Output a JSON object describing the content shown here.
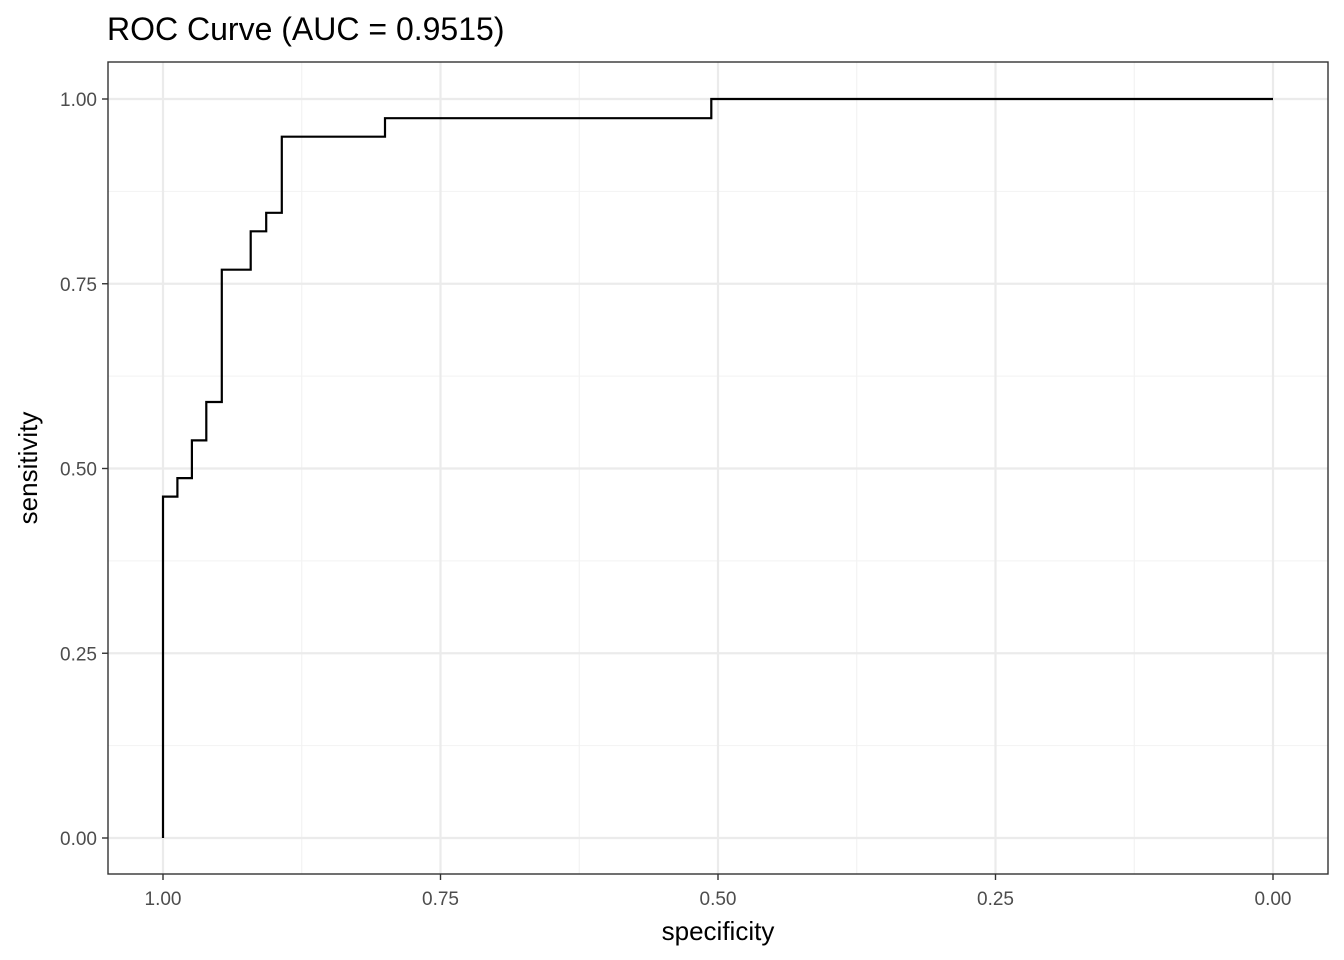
{
  "chart_data": {
    "type": "line",
    "title": "ROC Curve (AUC = 0.9515)",
    "xlabel": "specificity",
    "ylabel": "sensitivity",
    "x_reversed": true,
    "xlim": [
      1.0,
      0.0
    ],
    "ylim": [
      0.0,
      1.0
    ],
    "x_ticks": [
      {
        "value": 1.0,
        "label": "1.00"
      },
      {
        "value": 0.75,
        "label": "0.75"
      },
      {
        "value": 0.5,
        "label": "0.50"
      },
      {
        "value": 0.25,
        "label": "0.25"
      },
      {
        "value": 0.0,
        "label": "0.00"
      }
    ],
    "y_ticks": [
      {
        "value": 0.0,
        "label": "0.00"
      },
      {
        "value": 0.25,
        "label": "0.25"
      },
      {
        "value": 0.5,
        "label": "0.50"
      },
      {
        "value": 0.75,
        "label": "0.75"
      },
      {
        "value": 1.0,
        "label": "1.00"
      }
    ],
    "grid": true,
    "legend": "none",
    "line_color": "#000000",
    "series": [
      {
        "x": [
          1.0,
          1.0,
          0.987,
          0.987,
          0.974,
          0.974,
          0.961,
          0.961,
          0.947,
          0.947,
          0.921,
          0.921,
          0.907,
          0.907,
          0.893,
          0.893,
          0.8,
          0.8,
          0.506,
          0.506,
          0.0
        ],
        "y": [
          0.0,
          0.462,
          0.462,
          0.487,
          0.487,
          0.538,
          0.538,
          0.59,
          0.59,
          0.769,
          0.769,
          0.821,
          0.821,
          0.846,
          0.846,
          0.949,
          0.949,
          0.974,
          0.974,
          1.0,
          1.0
        ]
      }
    ]
  }
}
